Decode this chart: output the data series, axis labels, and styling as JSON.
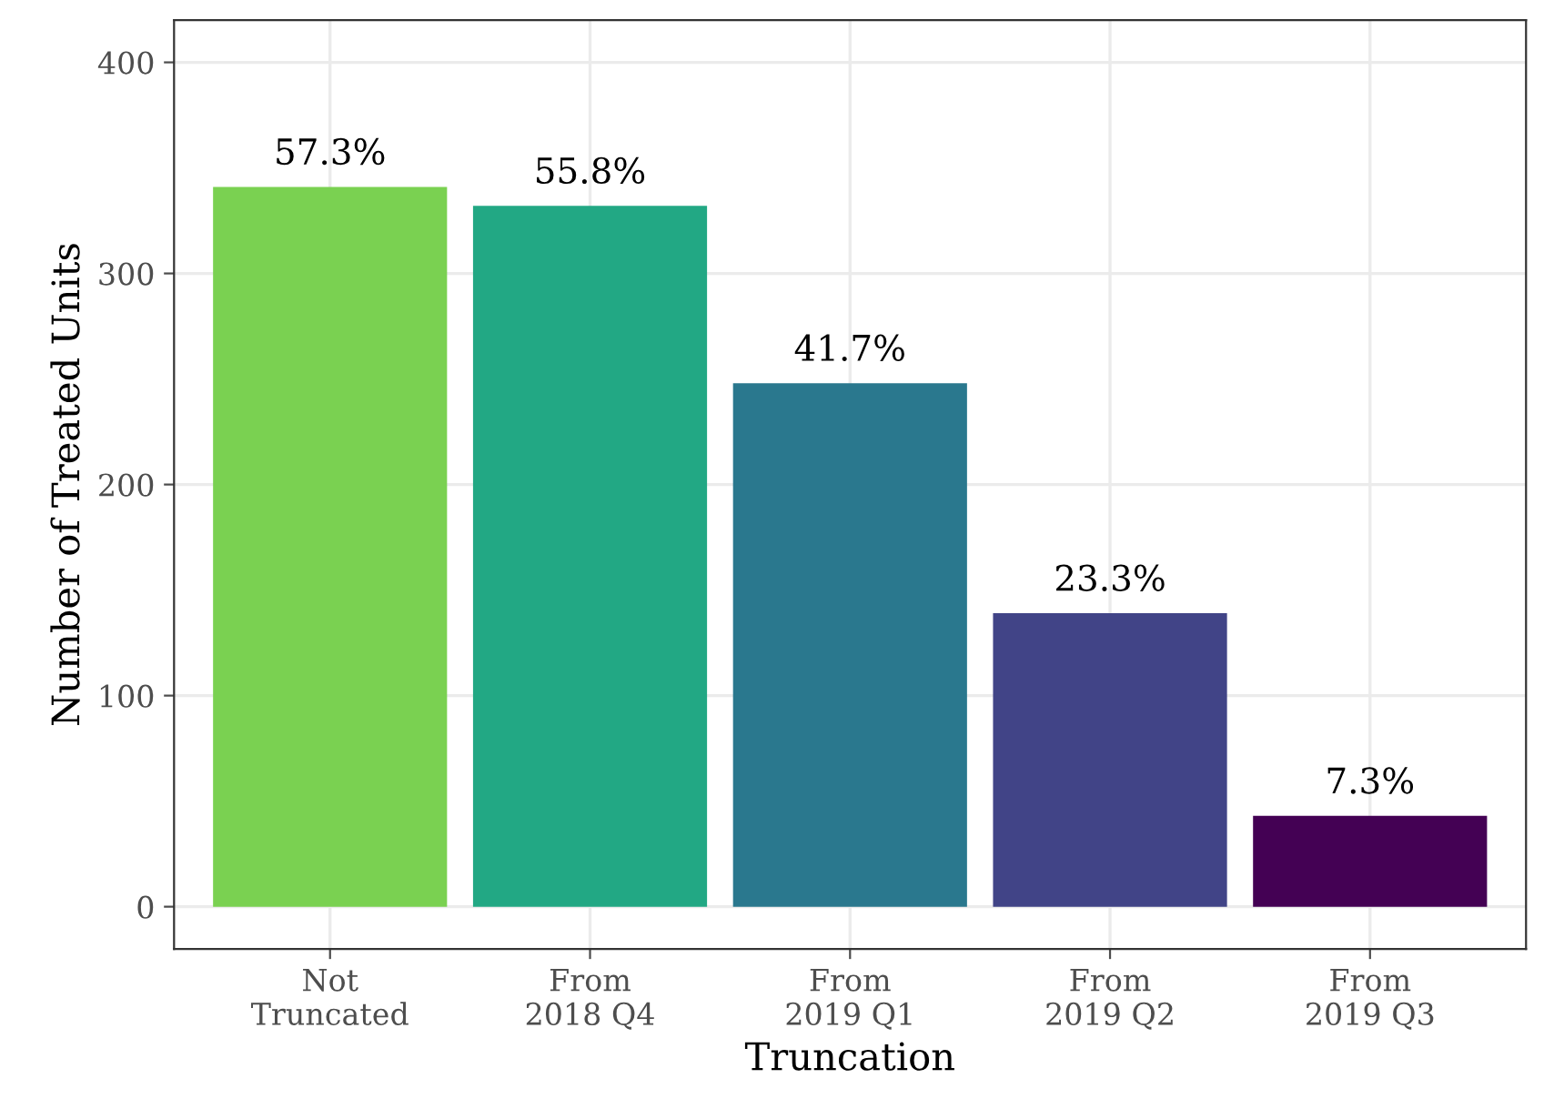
{
  "chart_data": {
    "type": "bar",
    "xlabel": "Truncation",
    "ylabel": "Number of Treated Units",
    "categories": [
      "Not\nTruncated",
      "From\n2018 Q4",
      "From\n2019 Q1",
      "From\n2019 Q2",
      "From\n2019 Q3"
    ],
    "values": [
      341,
      332,
      248,
      139,
      43
    ],
    "annotations": [
      {
        "text": "57.3%",
        "x": "Not\nTruncated",
        "y": 341
      },
      {
        "text": "55.8%",
        "x": "From\n2018 Q4",
        "y": 332
      },
      {
        "text": "41.7%",
        "x": "From\n2019 Q1",
        "y": 248
      },
      {
        "text": "23.3%",
        "x": "From\n2019 Q2",
        "y": 139
      },
      {
        "text": "7.3%",
        "x": "From\n2019 Q3",
        "y": 43
      }
    ],
    "colors": [
      "#7ad151",
      "#22a884",
      "#2a788e",
      "#414487",
      "#440154"
    ],
    "ylim": [
      -20,
      420
    ],
    "yticks": [
      0,
      100,
      200,
      300,
      400
    ],
    "grid": true
  }
}
